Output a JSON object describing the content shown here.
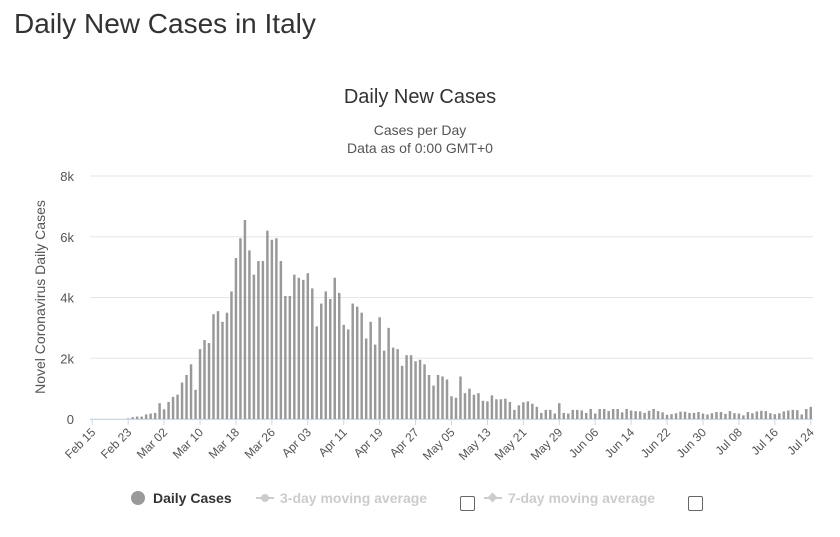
{
  "page": {
    "title": "Daily New Cases in Italy"
  },
  "chart_data": {
    "type": "bar",
    "title": "Daily New Cases",
    "subtitle": [
      "Cases per Day",
      "Data as of 0:00 GMT+0"
    ],
    "ylabel": "Novel Coronavirus Daily Cases",
    "ylim": [
      0,
      8000
    ],
    "yticks": [
      0,
      2000,
      4000,
      6000,
      8000
    ],
    "ytick_labels": [
      "0",
      "2k",
      "4k",
      "6k",
      "8k"
    ],
    "start_date": "Feb 15",
    "xtick_labels": [
      "Feb 15",
      "Feb 23",
      "Mar 02",
      "Mar 10",
      "Mar 18",
      "Mar 26",
      "Apr 03",
      "Apr 11",
      "Apr 19",
      "Apr 27",
      "May 05",
      "May 13",
      "May 21",
      "May 29",
      "Jun 06",
      "Jun 14",
      "Jun 22",
      "Jun 30",
      "Jul 08",
      "Jul 16",
      "Jul 24"
    ],
    "xtick_step_days": 8,
    "grid": true,
    "color": "#999999",
    "series": [
      {
        "name": "Daily Cases",
        "values": [
          0,
          0,
          0,
          0,
          0,
          0,
          0,
          0,
          20,
          60,
          80,
          80,
          150,
          180,
          200,
          520,
          320,
          560,
          730,
          800,
          1200,
          1450,
          1800,
          960,
          2300,
          2600,
          2500,
          3450,
          3550,
          3200,
          3500,
          4200,
          5300,
          5950,
          6550,
          5550,
          4750,
          5200,
          5200,
          6200,
          5900,
          5950,
          5200,
          4050,
          4050,
          4750,
          4650,
          4580,
          4800,
          4300,
          3050,
          3800,
          4200,
          3950,
          4650,
          4150,
          3100,
          2950,
          3800,
          3700,
          3500,
          2650,
          3200,
          2450,
          3350,
          2250,
          3000,
          2350,
          2300,
          1750,
          2100,
          2100,
          1900,
          1950,
          1800,
          1450,
          1100,
          1450,
          1400,
          1300,
          750,
          700,
          1400,
          850,
          1000,
          800,
          850,
          600,
          580,
          780,
          650,
          650,
          670,
          560,
          300,
          450,
          550,
          580,
          500,
          400,
          200,
          300,
          300,
          180,
          520,
          200,
          180,
          300,
          300,
          280,
          200,
          330,
          180,
          330,
          330,
          260,
          330,
          330,
          220,
          330,
          280,
          260,
          250,
          200,
          270,
          330,
          260,
          220,
          140,
          160,
          190,
          240,
          240,
          200,
          200,
          230,
          180,
          150,
          190,
          230,
          230,
          170,
          260,
          190,
          180,
          120,
          230,
          190,
          250,
          270,
          260,
          190,
          160,
          190,
          250,
          280,
          300,
          290,
          150,
          330,
          400
        ]
      },
      {
        "name": "3-day moving average",
        "values": []
      },
      {
        "name": "7-day moving average",
        "values": []
      }
    ],
    "legend": {
      "position": "bottom",
      "items": [
        {
          "label": "Daily Cases",
          "visible": true
        },
        {
          "label": "3-day moving average",
          "visible": false
        },
        {
          "label": "7-day moving average",
          "visible": false
        }
      ]
    }
  }
}
